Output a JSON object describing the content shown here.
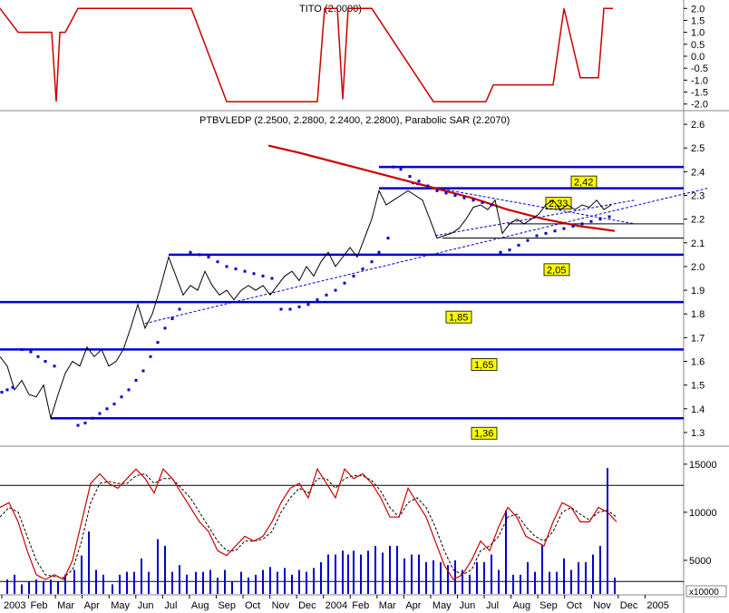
{
  "chart_data": [
    {
      "name": "tito",
      "type": "line",
      "title": "TITO (2.0000)",
      "ylim": [
        -2.2,
        2.2
      ],
      "yticks": [
        "2.0",
        "1.5",
        "1.0",
        "0.5",
        "0.0",
        "-0.5",
        "-1.0",
        "-1.5",
        "-2.0"
      ],
      "line_color": "#cc0000",
      "x": [
        0,
        20,
        57,
        62,
        66,
        72,
        86,
        120,
        150,
        211,
        250,
        300,
        350,
        358,
        372,
        378,
        384,
        410,
        478,
        536,
        544,
        610,
        622,
        640,
        660,
        666,
        676
      ],
      "values": [
        2.0,
        1.0,
        1.0,
        -1.9,
        1.0,
        1.0,
        2.0,
        2.0,
        2.0,
        2.0,
        -1.9,
        -1.9,
        -1.9,
        2.0,
        2.0,
        -1.8,
        2.0,
        2.0,
        -1.9,
        -1.9,
        -1.2,
        -1.2,
        2.0,
        -0.9,
        -0.9,
        2.0,
        2.0
      ]
    },
    {
      "name": "price",
      "type": "line",
      "title": "PTBVLEDP (2.2500, 2.2800, 2.2400, 2.2800), Parabolic SAR (2.2070)",
      "ylim": [
        1.25,
        2.65
      ],
      "yticks": [
        "2.6",
        "2.5",
        "2.4",
        "2.3",
        "2.2",
        "2.1",
        "2.0",
        "1.9",
        "1.8",
        "1.7",
        "1.6",
        "1.5",
        "1.4",
        "1.3"
      ],
      "price_x": [
        0,
        8,
        16,
        24,
        32,
        40,
        48,
        56,
        64,
        72,
        80,
        88,
        96,
        104,
        112,
        120,
        128,
        136,
        144,
        152,
        160,
        168,
        176,
        186,
        194,
        202,
        210,
        218,
        226,
        234,
        242,
        250,
        258,
        266,
        274,
        282,
        290,
        298,
        306,
        314,
        322,
        330,
        338,
        346,
        354,
        362,
        370,
        378,
        386,
        394,
        402,
        410,
        418,
        426,
        434,
        442,
        450,
        458,
        466,
        474,
        482,
        490,
        498,
        506,
        514,
        522,
        530,
        538,
        546,
        554,
        562,
        570,
        578,
        586,
        594,
        602,
        610,
        618,
        626,
        634,
        642,
        650,
        658,
        666,
        674
      ],
      "price": [
        1.62,
        1.58,
        1.48,
        1.52,
        1.46,
        1.45,
        1.5,
        1.36,
        1.46,
        1.55,
        1.6,
        1.58,
        1.66,
        1.62,
        1.65,
        1.58,
        1.6,
        1.65,
        1.74,
        1.84,
        1.74,
        1.8,
        1.9,
        2.04,
        1.96,
        1.88,
        1.92,
        1.9,
        1.98,
        1.92,
        1.88,
        1.9,
        1.86,
        1.9,
        1.92,
        1.9,
        1.92,
        1.88,
        1.92,
        1.96,
        1.98,
        1.94,
        2.0,
        1.96,
        2.02,
        2.06,
        2.0,
        2.04,
        2.08,
        2.04,
        2.12,
        2.2,
        2.32,
        2.26,
        2.28,
        2.3,
        2.32,
        2.3,
        2.28,
        2.2,
        2.12,
        2.13,
        2.14,
        2.16,
        2.2,
        2.25,
        2.26,
        2.24,
        2.28,
        2.14,
        2.18,
        2.2,
        2.18,
        2.2,
        2.22,
        2.26,
        2.28,
        2.24,
        2.26,
        2.24,
        2.26,
        2.25,
        2.28,
        2.24,
        2.26
      ],
      "sar_x": [
        2,
        8,
        14,
        24,
        34,
        42,
        50,
        60,
        86,
        94,
        102,
        110,
        118,
        126,
        134,
        142,
        150,
        158,
        166,
        174,
        182,
        190,
        198,
        210,
        220,
        230,
        240,
        250,
        260,
        270,
        280,
        290,
        300,
        310,
        320,
        330,
        340,
        350,
        360,
        370,
        380,
        390,
        400,
        410,
        418,
        428,
        434,
        442,
        452,
        462,
        472,
        482,
        492,
        502,
        512,
        522,
        532,
        542,
        552,
        562,
        572,
        582,
        592,
        602,
        612,
        622,
        632,
        642,
        652,
        662,
        672
      ],
      "sar": [
        1.47,
        1.48,
        1.49,
        1.65,
        1.64,
        1.62,
        1.6,
        1.58,
        1.33,
        1.34,
        1.36,
        1.38,
        1.4,
        1.42,
        1.45,
        1.48,
        1.52,
        1.56,
        1.62,
        1.68,
        1.74,
        1.78,
        1.82,
        2.06,
        2.05,
        2.04,
        2.02,
        2.0,
        1.99,
        1.98,
        1.97,
        1.96,
        1.95,
        1.82,
        1.82,
        1.83,
        1.84,
        1.86,
        1.88,
        1.9,
        1.93,
        1.96,
        1.99,
        2.02,
        2.06,
        2.12,
        2.42,
        2.41,
        2.38,
        2.36,
        2.34,
        2.32,
        2.31,
        2.3,
        2.29,
        2.28,
        2.27,
        2.26,
        2.06,
        2.07,
        2.09,
        2.11,
        2.13,
        2.14,
        2.15,
        2.16,
        2.17,
        2.18,
        2.19,
        2.2,
        2.21
      ],
      "moving_average_x": [
        296,
        330,
        380,
        430,
        470,
        520,
        560,
        600,
        640,
        660,
        678
      ],
      "moving_average": [
        2.51,
        2.48,
        2.43,
        2.38,
        2.34,
        2.29,
        2.24,
        2.2,
        2.17,
        2.16,
        2.15
      ],
      "levels": [
        {
          "label": "2,42",
          "value": 2.42,
          "x_start": 418
        },
        {
          "label": "2,33",
          "value": 2.33,
          "x_start": 418
        },
        {
          "label": "2,05",
          "value": 2.05,
          "x_start": 186
        },
        {
          "label": "1,85",
          "value": 1.85,
          "x_start": 0
        },
        {
          "label": "1,65",
          "value": 1.65,
          "x_start": 0
        },
        {
          "label": "1,36",
          "value": 1.36,
          "x_start": 56
        }
      ],
      "thin_levels": [
        {
          "value": 2.18,
          "x_start": 560
        },
        {
          "value": 2.12,
          "x_start": 488
        }
      ],
      "trendlines": [
        {
          "x1": 160,
          "y1": 1.76,
          "x2": 780,
          "y2": 2.33
        },
        {
          "x1": 454,
          "y1": 2.35,
          "x2": 700,
          "y2": 2.18
        },
        {
          "x1": 480,
          "y1": 2.13,
          "x2": 700,
          "y2": 2.28
        }
      ],
      "colors": {
        "price": "#000000",
        "sar": "#0000cc",
        "level": "#0000cc",
        "ma": "#cc0000",
        "label_bg": "#ffff00"
      }
    },
    {
      "name": "volume",
      "type": "bar",
      "ylim": [
        1500,
        16500
      ],
      "yticks": [
        "15000",
        "10000",
        "5000"
      ],
      "unit": "x10000",
      "months": [
        "2003",
        "Feb",
        "Mar",
        "Apr",
        "May",
        "Jun",
        "Jul",
        "Aug",
        "Sep",
        "Oct",
        "Nov",
        "Dec",
        "2004",
        "Feb",
        "Mar",
        "Apr",
        "May",
        "Jun",
        "Jul",
        "Aug",
        "Sep",
        "Oct",
        "Nov",
        "Dec",
        "2005"
      ],
      "oscillator_x": [
        0,
        10,
        20,
        30,
        40,
        50,
        60,
        70,
        80,
        90,
        100,
        110,
        120,
        130,
        140,
        150,
        160,
        170,
        180,
        190,
        200,
        210,
        220,
        230,
        240,
        250,
        260,
        270,
        280,
        290,
        300,
        310,
        320,
        330,
        340,
        350,
        360,
        370,
        380,
        390,
        400,
        410,
        420,
        430,
        440,
        450,
        460,
        470,
        480,
        490,
        500,
        510,
        520,
        530,
        540,
        550,
        560,
        570,
        580,
        590,
        600,
        610,
        620,
        630,
        640,
        650,
        660,
        670,
        680
      ],
      "oscillator_k": [
        10500,
        11000,
        9000,
        6000,
        3500,
        3000,
        3500,
        3000,
        5000,
        9000,
        13000,
        14000,
        13000,
        12500,
        13500,
        14500,
        13500,
        12000,
        14500,
        13500,
        12000,
        10500,
        9000,
        8000,
        6000,
        5500,
        6500,
        7500,
        7000,
        7500,
        9000,
        11000,
        12500,
        13000,
        11500,
        14500,
        13000,
        11500,
        14500,
        13500,
        14000,
        13000,
        11500,
        9500,
        9500,
        12500,
        11000,
        9500,
        7000,
        4500,
        3000,
        3500,
        5000,
        7000,
        6000,
        8500,
        10500,
        9500,
        7500,
        7000,
        6500,
        9000,
        11000,
        10500,
        9000,
        9000,
        10500,
        10000,
        9000
      ],
      "oscillator_d": [
        9500,
        10500,
        10000,
        7500,
        5000,
        3500,
        3300,
        3200,
        4000,
        7000,
        11000,
        13000,
        13200,
        13000,
        13000,
        13800,
        14000,
        13000,
        13500,
        13500,
        12500,
        11500,
        10000,
        8500,
        7000,
        6000,
        6000,
        7000,
        7000,
        7200,
        8000,
        10000,
        11500,
        12500,
        12000,
        13500,
        13500,
        12500,
        13500,
        13800,
        13800,
        13300,
        12200,
        10500,
        9500,
        11000,
        11500,
        10500,
        8500,
        6000,
        4000,
        3500,
        4000,
        6000,
        6500,
        7500,
        9500,
        9800,
        8500,
        7500,
        7000,
        8000,
        10000,
        10500,
        9800,
        9200,
        10000,
        10200,
        9500
      ],
      "bar_x": [
        8,
        16,
        24,
        32,
        40,
        48,
        56,
        64,
        72,
        82,
        90,
        98,
        106,
        114,
        124,
        132,
        140,
        148,
        156,
        164,
        174,
        182,
        190,
        198,
        206,
        216,
        224,
        232,
        240,
        248,
        256,
        266,
        274,
        282,
        290,
        298,
        306,
        314,
        322,
        330,
        338,
        346,
        354,
        362,
        370,
        378,
        384,
        390,
        398,
        406,
        414,
        422,
        430,
        438,
        446,
        454,
        462,
        470,
        478,
        486,
        494,
        502,
        510,
        518,
        526,
        534,
        542,
        550,
        558,
        566,
        574,
        582,
        590,
        598,
        606,
        614,
        622,
        630,
        638,
        646,
        654,
        662,
        670,
        678
      ],
      "bar_values": [
        3000,
        3500,
        2500,
        2800,
        3000,
        2800,
        3000,
        2800,
        3500,
        4000,
        5500,
        8000,
        4000,
        3500,
        2500,
        3500,
        3800,
        3800,
        5200,
        3800,
        7200,
        6500,
        3800,
        4500,
        3500,
        3800,
        3800,
        4000,
        3200,
        4000,
        2800,
        3800,
        3200,
        3500,
        4000,
        4300,
        3800,
        4200,
        3500,
        4000,
        3800,
        4200,
        4800,
        5600,
        5600,
        6000,
        5600,
        6000,
        5600,
        6000,
        6500,
        5800,
        6500,
        6500,
        5200,
        5600,
        5600,
        4800,
        5000,
        4800,
        4500,
        5000,
        4000,
        3500,
        4800,
        4800,
        5600,
        4000,
        10200,
        3500,
        3500,
        4800,
        3800,
        6600,
        3800,
        3800,
        5200,
        4000,
        4800,
        4800,
        5600,
        6500,
        14600,
        3200
      ],
      "hlines": [
        12800,
        2800
      ],
      "colors": {
        "bar": "#0000cc",
        "k": "#cc0000",
        "d": "#000000",
        "spike": "#0000cc"
      }
    }
  ]
}
